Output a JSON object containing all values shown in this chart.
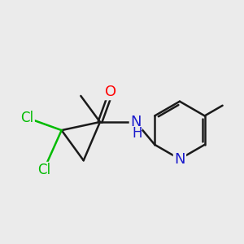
{
  "bg_color": "#ebebeb",
  "bond_color": "#1a1a1a",
  "bond_width": 1.8,
  "atom_colors": {
    "O": "#ff0000",
    "N": "#1a1acc",
    "Cl": "#00bb00",
    "C": "#1a1a1a"
  },
  "font_size": 13,
  "fig_size": [
    3.0,
    3.0
  ],
  "dpi": 100
}
